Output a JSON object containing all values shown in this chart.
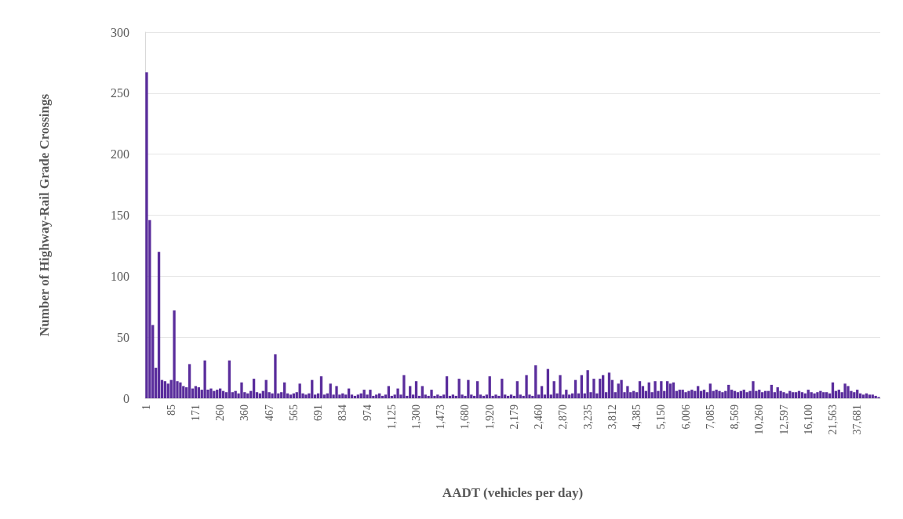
{
  "chart_data": {
    "type": "bar",
    "xlabel": "AADT (vehicles per day)",
    "ylabel": "Number of Highway-Rail Grade Crossings",
    "categories": [
      "1",
      null,
      null,
      null,
      null,
      null,
      null,
      null,
      "85",
      null,
      null,
      null,
      null,
      null,
      null,
      null,
      "171",
      null,
      null,
      null,
      null,
      null,
      null,
      null,
      "260",
      null,
      null,
      null,
      null,
      null,
      null,
      null,
      "360",
      null,
      null,
      null,
      null,
      null,
      null,
      null,
      "467",
      null,
      null,
      null,
      null,
      null,
      null,
      null,
      "565",
      null,
      null,
      null,
      null,
      null,
      null,
      null,
      "691",
      null,
      null,
      null,
      null,
      null,
      null,
      null,
      "834",
      null,
      null,
      null,
      null,
      null,
      null,
      null,
      "974",
      null,
      null,
      null,
      null,
      null,
      null,
      null,
      "1,125",
      null,
      null,
      null,
      null,
      null,
      null,
      null,
      "1,300",
      null,
      null,
      null,
      null,
      null,
      null,
      null,
      "1,473",
      null,
      null,
      null,
      null,
      null,
      null,
      null,
      "1,680",
      null,
      null,
      null,
      null,
      null,
      null,
      null,
      "1,920",
      null,
      null,
      null,
      null,
      null,
      null,
      null,
      "2,179",
      null,
      null,
      null,
      null,
      null,
      null,
      null,
      "2,460",
      null,
      null,
      null,
      null,
      null,
      null,
      null,
      "2,870",
      null,
      null,
      null,
      null,
      null,
      null,
      null,
      "3,235",
      null,
      null,
      null,
      null,
      null,
      null,
      null,
      "3,812",
      null,
      null,
      null,
      null,
      null,
      null,
      null,
      "4,385",
      null,
      null,
      null,
      null,
      null,
      null,
      null,
      "5,150",
      null,
      null,
      null,
      null,
      null,
      null,
      null,
      "6,006",
      null,
      null,
      null,
      null,
      null,
      null,
      null,
      "7,085",
      null,
      null,
      null,
      null,
      null,
      null,
      null,
      "8,569",
      null,
      null,
      null,
      null,
      null,
      null,
      null,
      "10,260",
      null,
      null,
      null,
      null,
      null,
      null,
      null,
      "12,597",
      null,
      null,
      null,
      null,
      null,
      null,
      null,
      "16,100",
      null,
      null,
      null,
      null,
      null,
      null,
      null,
      "21,563",
      null,
      null,
      null,
      null,
      null,
      null,
      null,
      "37,681",
      null,
      null,
      null,
      null,
      null,
      null,
      null
    ],
    "values": [
      267,
      146,
      60,
      25,
      120,
      15,
      14,
      12,
      15,
      72,
      14,
      13,
      10,
      9,
      28,
      8,
      10,
      9,
      7,
      31,
      7,
      8,
      6,
      7,
      8,
      6,
      5,
      31,
      5,
      6,
      4,
      13,
      5,
      4,
      6,
      16,
      5,
      4,
      6,
      15,
      5,
      4,
      36,
      4,
      5,
      13,
      4,
      3,
      4,
      5,
      12,
      4,
      3,
      4,
      15,
      3,
      4,
      18,
      3,
      4,
      12,
      3,
      10,
      3,
      4,
      3,
      8,
      3,
      2,
      3,
      4,
      7,
      3,
      7,
      2,
      3,
      4,
      2,
      3,
      10,
      2,
      3,
      8,
      3,
      19,
      2,
      10,
      3,
      14,
      2,
      10,
      3,
      2,
      7,
      2,
      3,
      2,
      3,
      18,
      2,
      3,
      2,
      16,
      3,
      2,
      15,
      3,
      2,
      14,
      3,
      2,
      3,
      18,
      2,
      3,
      2,
      16,
      3,
      2,
      3,
      2,
      14,
      3,
      2,
      19,
      3,
      2,
      27,
      3,
      10,
      3,
      24,
      3,
      14,
      4,
      19,
      3,
      7,
      3,
      4,
      15,
      4,
      19,
      4,
      23,
      5,
      16,
      4,
      16,
      19,
      5,
      21,
      15,
      5,
      12,
      15,
      5,
      10,
      5,
      6,
      5,
      14,
      10,
      6,
      13,
      5,
      14,
      6,
      14,
      6,
      14,
      12,
      13,
      6,
      7,
      7,
      5,
      6,
      7,
      6,
      10,
      6,
      7,
      5,
      12,
      6,
      7,
      6,
      5,
      6,
      11,
      7,
      6,
      5,
      6,
      7,
      5,
      6,
      14,
      6,
      7,
      5,
      6,
      6,
      11,
      5,
      9,
      6,
      5,
      4,
      6,
      5,
      5,
      6,
      5,
      4,
      7,
      5,
      4,
      5,
      6,
      5,
      5,
      4,
      13,
      6,
      7,
      5,
      12,
      10,
      6,
      5,
      7,
      4,
      3,
      4,
      3,
      3,
      2,
      1
    ],
    "color": "#5a2d9c",
    "ylim": [
      0,
      300
    ],
    "yticks": [
      0,
      50,
      100,
      150,
      200,
      250,
      300
    ],
    "grid": "y"
  }
}
